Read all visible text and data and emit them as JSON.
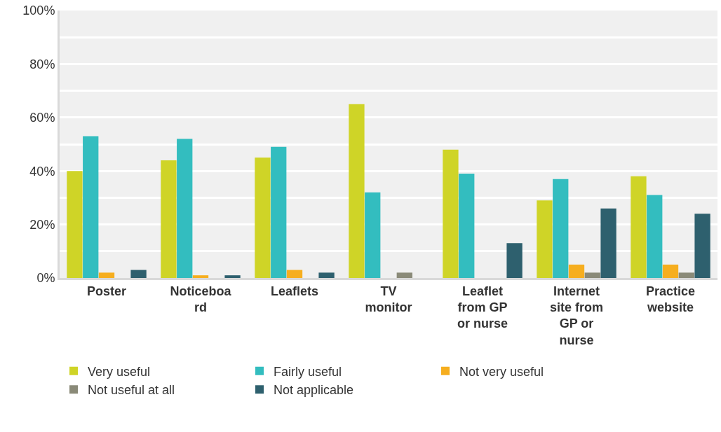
{
  "chart_data": {
    "type": "bar",
    "categories": [
      "Poster",
      "Noticeboard",
      "Leaflets",
      "TV monitor",
      "Leaflet from GP or nurse",
      "Internet site from GP or nurse",
      "Practice website"
    ],
    "series": [
      {
        "name": "Very useful",
        "color": "#cfd427",
        "values": [
          40,
          44,
          45,
          65,
          48,
          29,
          38
        ]
      },
      {
        "name": "Fairly useful",
        "color": "#33bdbf",
        "values": [
          53,
          52,
          49,
          32,
          39,
          37,
          31
        ]
      },
      {
        "name": "Not very useful",
        "color": "#f6ae1f",
        "values": [
          2,
          1,
          3,
          0,
          0,
          5,
          5
        ]
      },
      {
        "name": "Not useful at all",
        "color": "#8a8a78",
        "values": [
          0,
          0,
          0,
          2,
          0,
          2,
          2
        ]
      },
      {
        "name": "Not applicable",
        "color": "#2e606e",
        "values": [
          3,
          1,
          2,
          0,
          13,
          26,
          24
        ]
      }
    ],
    "ylim": [
      0,
      100
    ],
    "yticks": [
      {
        "value": 0,
        "label": "0%"
      },
      {
        "value": 10,
        "label": null
      },
      {
        "value": 20,
        "label": "20%"
      },
      {
        "value": 30,
        "label": null
      },
      {
        "value": 40,
        "label": "40%"
      },
      {
        "value": 50,
        "label": null
      },
      {
        "value": 60,
        "label": "60%"
      },
      {
        "value": 70,
        "label": null
      },
      {
        "value": 80,
        "label": "80%"
      },
      {
        "value": 90,
        "label": null
      },
      {
        "value": 100,
        "label": "100%"
      }
    ],
    "grid": "y",
    "legend": "bottom"
  }
}
